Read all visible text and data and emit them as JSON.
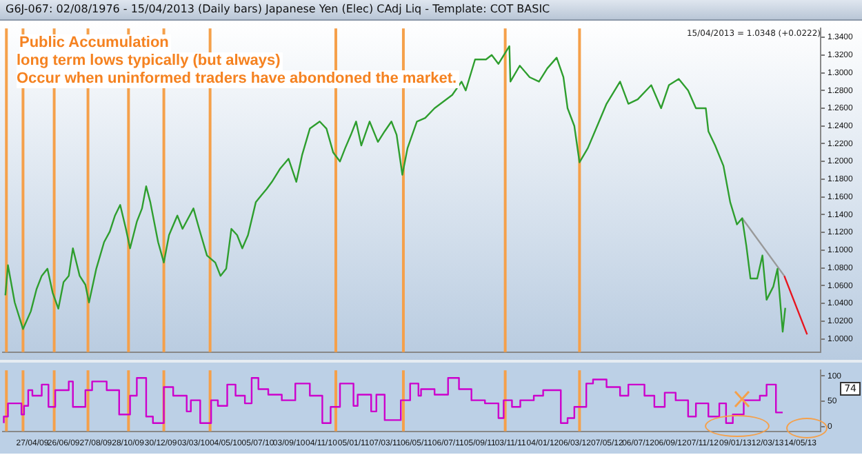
{
  "chart_data": [
    {
      "type": "line",
      "title": "G6J-067:  02/08/1976 - 15/04/2013  (Daily bars)  Japanese Yen (Elec) CAdj Liq  -  Template: COT BASIC",
      "annotations": [
        "Public Accumulation",
        "long term lows typically (but always)",
        "Occur when uninformed traders have abondoned the market.",
        "15/04/2013 = 1.0348 (+0.0222)"
      ],
      "xlim": [
        "2009-03-01",
        "2013-06-22"
      ],
      "ylim": [
        0.985,
        1.35
      ],
      "yticks": [
        {
          "value": 1.0,
          "label": "1.0000"
        },
        {
          "value": 1.02,
          "label": "1.0200"
        },
        {
          "value": 1.04,
          "label": "1.0400"
        },
        {
          "value": 1.06,
          "label": "1.0600"
        },
        {
          "value": 1.08,
          "label": "1.0800"
        },
        {
          "value": 1.1,
          "label": "1.1000"
        },
        {
          "value": 1.12,
          "label": "1.1200"
        },
        {
          "value": 1.14,
          "label": "1.1400"
        },
        {
          "value": 1.16,
          "label": "1.1600"
        },
        {
          "value": 1.18,
          "label": "1.1800"
        },
        {
          "value": 1.2,
          "label": "1.2000"
        },
        {
          "value": 1.22,
          "label": "1.2200"
        },
        {
          "value": 1.24,
          "label": "1.2400"
        },
        {
          "value": 1.26,
          "label": "1.2600"
        },
        {
          "value": 1.28,
          "label": "1.2800"
        },
        {
          "value": 1.3,
          "label": "1.3000"
        },
        {
          "value": 1.32,
          "label": "1.3200"
        },
        {
          "value": 1.34,
          "label": "1.3400"
        }
      ],
      "tick_labels": "y",
      "grid": false,
      "legend": false,
      "ref_lines": [
        {
          "axis": "x",
          "value": "2009-03-08",
          "color": "#f5a04a"
        },
        {
          "axis": "x",
          "value": "2009-04-09",
          "color": "#f5a04a"
        },
        {
          "axis": "x",
          "value": "2009-06-08",
          "color": "#f5a04a"
        },
        {
          "axis": "x",
          "value": "2009-08-12",
          "color": "#f5a04a"
        },
        {
          "axis": "x",
          "value": "2009-10-29",
          "color": "#f5a04a"
        },
        {
          "axis": "x",
          "value": "2010-01-05",
          "color": "#f5a04a"
        },
        {
          "axis": "x",
          "value": "2010-04-04",
          "color": "#f5a04a"
        },
        {
          "axis": "x",
          "value": "2010-12-02",
          "color": "#f5a04a"
        },
        {
          "axis": "x",
          "value": "2011-04-11",
          "color": "#f5a04a"
        },
        {
          "axis": "x",
          "value": "2011-10-24",
          "color": "#f5a04a"
        },
        {
          "axis": "x",
          "value": "2012-03-15",
          "color": "#f5a04a"
        }
      ],
      "series": [
        {
          "type": "line",
          "color": "#2e9e2e",
          "x": [
            "2009-03-06",
            "2009-03-11",
            "2009-03-24",
            "2009-04-09",
            "2009-04-24",
            "2009-05-05",
            "2009-05-15",
            "2009-05-26",
            "2009-06-05",
            "2009-06-16",
            "2009-06-26",
            "2009-07-06",
            "2009-07-14",
            "2009-07-27",
            "2009-08-07",
            "2009-08-14",
            "2009-08-28",
            "2009-09-12",
            "2009-09-23",
            "2009-10-03",
            "2009-10-13",
            "2009-10-24",
            "2009-11-01",
            "2009-11-14",
            "2009-11-24",
            "2009-12-02",
            "2009-12-10",
            "2009-12-25",
            "2010-01-05",
            "2010-01-15",
            "2010-01-31",
            "2010-02-10",
            "2010-03-03",
            "2010-03-14",
            "2010-03-29",
            "2010-04-14",
            "2010-04-24",
            "2010-05-05",
            "2010-05-15",
            "2010-05-26",
            "2010-06-05",
            "2010-06-16",
            "2010-07-01",
            "2010-07-12",
            "2010-07-22",
            "2010-08-01",
            "2010-08-17",
            "2010-09-02",
            "2010-09-17",
            "2010-09-28",
            "2010-10-13",
            "2010-11-01",
            "2010-11-14",
            "2010-11-27",
            "2010-12-10",
            "2010-12-20",
            "2010-12-31",
            "2011-01-10",
            "2011-01-20",
            "2011-02-05",
            "2011-02-21",
            "2011-03-06",
            "2011-03-19",
            "2011-03-29",
            "2011-04-09",
            "2011-04-19",
            "2011-05-07",
            "2011-05-23",
            "2011-06-10",
            "2011-07-14",
            "2011-08-01",
            "2011-08-09",
            "2011-08-27",
            "2011-09-17",
            "2011-09-28",
            "2011-10-11",
            "2011-11-01",
            "2011-11-03",
            "2011-11-21",
            "2011-12-10",
            "2011-12-28",
            "2012-01-13",
            "2012-01-31",
            "2012-02-13",
            "2012-02-21",
            "2012-03-05",
            "2012-03-15",
            "2012-03-31",
            "2012-04-18",
            "2012-05-06",
            "2012-06-01",
            "2012-06-17",
            "2012-07-05",
            "2012-07-31",
            "2012-08-19",
            "2012-09-03",
            "2012-09-22",
            "2012-10-10",
            "2012-10-25",
            "2012-11-13",
            "2012-11-18",
            "2012-12-01",
            "2012-12-17",
            "2012-12-30",
            "2013-01-12",
            "2013-01-22",
            "2013-01-30",
            "2013-02-07",
            "2013-02-20",
            "2013-03-02",
            "2013-03-10",
            "2013-03-23",
            "2013-03-31",
            "2013-04-10",
            "2013-04-15"
          ],
          "values": [
            1.049,
            1.083,
            1.041,
            1.011,
            1.031,
            1.056,
            1.071,
            1.079,
            1.052,
            1.034,
            1.064,
            1.071,
            1.102,
            1.071,
            1.061,
            1.041,
            1.079,
            1.109,
            1.121,
            1.139,
            1.151,
            1.124,
            1.102,
            1.132,
            1.147,
            1.172,
            1.154,
            1.109,
            1.086,
            1.117,
            1.139,
            1.124,
            1.147,
            1.124,
            1.094,
            1.086,
            1.071,
            1.079,
            1.124,
            1.117,
            1.102,
            1.117,
            1.154,
            1.162,
            1.169,
            1.177,
            1.192,
            1.203,
            1.177,
            1.207,
            1.237,
            1.245,
            1.237,
            1.21,
            1.2,
            1.215,
            1.23,
            1.245,
            1.218,
            1.245,
            1.222,
            1.234,
            1.245,
            1.23,
            1.185,
            1.215,
            1.245,
            1.249,
            1.26,
            1.275,
            1.29,
            1.28,
            1.315,
            1.315,
            1.32,
            1.31,
            1.33,
            1.29,
            1.308,
            1.295,
            1.29,
            1.305,
            1.317,
            1.295,
            1.26,
            1.24,
            1.199,
            1.215,
            1.24,
            1.265,
            1.29,
            1.265,
            1.27,
            1.286,
            1.26,
            1.286,
            1.293,
            1.28,
            1.26,
            1.26,
            1.234,
            1.218,
            1.195,
            1.154,
            1.129,
            1.136,
            1.105,
            1.068,
            1.068,
            1.094,
            1.044,
            1.059,
            1.079,
            1.008,
            1.0348
          ]
        },
        {
          "type": "line",
          "color": "#999999",
          "x": [
            "2013-01-22",
            "2013-04-13"
          ],
          "values": [
            1.136,
            1.071
          ]
        },
        {
          "type": "line",
          "color": "#e8141e",
          "x": [
            "2013-04-13",
            "2013-05-27"
          ],
          "values": [
            1.071,
            1.005
          ]
        }
      ]
    },
    {
      "type": "step",
      "annotations": [
        "74"
      ],
      "xlim": [
        "2009-03-01",
        "2013-06-22"
      ],
      "ylim": [
        -9,
        111
      ],
      "yticks": [
        0,
        50,
        100
      ],
      "xticks": [
        {
          "value": "2009-04-27",
          "label": "27/04/09"
        },
        {
          "value": "2009-06-26",
          "label": "26/06/09"
        },
        {
          "value": "2009-08-27",
          "label": "27/08/09"
        },
        {
          "value": "2009-10-28",
          "label": "28/10/09"
        },
        {
          "value": "2009-12-30",
          "label": "30/12/09"
        },
        {
          "value": "2010-03-03",
          "label": "03/03/10"
        },
        {
          "value": "2010-05-04",
          "label": "04/05/10"
        },
        {
          "value": "2010-07-05",
          "label": "05/07/10"
        },
        {
          "value": "2010-09-03",
          "label": "03/09/10"
        },
        {
          "value": "2010-11-04",
          "label": "04/11/10"
        },
        {
          "value": "2011-01-05",
          "label": "05/01/11"
        },
        {
          "value": "2011-03-07",
          "label": "07/03/11"
        },
        {
          "value": "2011-05-06",
          "label": "06/05/11"
        },
        {
          "value": "2011-07-06",
          "label": "06/07/11"
        },
        {
          "value": "2011-09-05",
          "label": "05/09/11"
        },
        {
          "value": "2011-11-03",
          "label": "03/11/11"
        },
        {
          "value": "2012-01-04",
          "label": "04/01/12"
        },
        {
          "value": "2012-03-06",
          "label": "06/03/12"
        },
        {
          "value": "2012-05-07",
          "label": "07/05/12"
        },
        {
          "value": "2012-07-06",
          "label": "06/07/12"
        },
        {
          "value": "2012-09-06",
          "label": "06/09/12"
        },
        {
          "value": "2012-11-07",
          "label": "07/11/12"
        },
        {
          "value": "2013-01-09",
          "label": "09/01/13"
        },
        {
          "value": "2013-03-12",
          "label": "12/03/13"
        },
        {
          "value": "2013-05-14",
          "label": "14/05/13"
        }
      ],
      "grid": false,
      "legend": false,
      "ref_lines": [
        {
          "axis": "x",
          "value": "2009-03-08",
          "color": "#f5a04a"
        },
        {
          "axis": "x",
          "value": "2009-04-09",
          "color": "#f5a04a"
        },
        {
          "axis": "x",
          "value": "2009-06-08",
          "color": "#f5a04a"
        },
        {
          "axis": "x",
          "value": "2009-08-12",
          "color": "#f5a04a"
        },
        {
          "axis": "x",
          "value": "2009-10-29",
          "color": "#f5a04a"
        },
        {
          "axis": "x",
          "value": "2010-01-05",
          "color": "#f5a04a"
        },
        {
          "axis": "x",
          "value": "2010-04-04",
          "color": "#f5a04a"
        },
        {
          "axis": "x",
          "value": "2010-12-02",
          "color": "#f5a04a"
        },
        {
          "axis": "x",
          "value": "2011-04-11",
          "color": "#f5a04a"
        },
        {
          "axis": "x",
          "value": "2011-10-24",
          "color": "#f5a04a"
        },
        {
          "axis": "x",
          "value": "2012-03-15",
          "color": "#f5a04a"
        }
      ],
      "series": [
        {
          "color": "#cc00cc",
          "x": [
            "2009-03-03",
            "2009-03-11",
            "2009-04-06",
            "2009-04-11",
            "2009-04-19",
            "2009-04-27",
            "2009-05-15",
            "2009-05-28",
            "2009-06-10",
            "2009-07-06",
            "2009-07-14",
            "2009-08-07",
            "2009-08-20",
            "2009-09-17",
            "2009-10-11",
            "2009-11-01",
            "2009-11-14",
            "2009-12-02",
            "2009-12-15",
            "2010-01-05",
            "2010-01-23",
            "2010-02-18",
            "2010-02-26",
            "2010-03-16",
            "2010-04-06",
            "2010-04-19",
            "2010-05-07",
            "2010-05-23",
            "2010-06-10",
            "2010-06-23",
            "2010-07-06",
            "2010-07-25",
            "2010-08-20",
            "2010-09-15",
            "2010-10-13",
            "2010-11-06",
            "2010-11-22",
            "2010-12-10",
            "2011-01-05",
            "2011-01-13",
            "2011-02-08",
            "2011-02-18",
            "2011-03-06",
            "2011-04-06",
            "2011-04-24",
            "2011-05-10",
            "2011-05-15",
            "2011-06-10",
            "2011-07-06",
            "2011-07-27",
            "2011-08-20",
            "2011-09-15",
            "2011-10-11",
            "2011-10-21",
            "2011-11-06",
            "2011-11-22",
            "2011-12-18",
            "2012-01-05",
            "2012-02-08",
            "2012-02-21",
            "2012-03-05",
            "2012-03-28",
            "2012-04-10",
            "2012-05-06",
            "2012-06-01",
            "2012-06-17",
            "2012-07-18",
            "2012-08-06",
            "2012-08-26",
            "2012-09-16",
            "2012-10-10",
            "2012-10-25",
            "2012-11-18",
            "2012-12-09",
            "2012-12-22",
            "2013-01-04",
            "2013-01-25",
            "2013-02-25",
            "2013-03-10",
            "2013-03-28",
            "2013-04-10"
          ],
          "values": [
            7,
            20,
            46,
            24,
            41,
            72,
            61,
            83,
            39,
            72,
            89,
            39,
            72,
            89,
            72,
            24,
            61,
            96,
            20,
            7,
            78,
            61,
            30,
            52,
            7,
            52,
            41,
            83,
            61,
            46,
            96,
            74,
            63,
            52,
            85,
            61,
            7,
            39,
            85,
            41,
            63,
            30,
            63,
            13,
            52,
            85,
            61,
            74,
            63,
            96,
            74,
            52,
            46,
            17,
            52,
            39,
            52,
            61,
            72,
            7,
            17,
            39,
            85,
            93,
            78,
            61,
            83,
            61,
            39,
            67,
            52,
            20,
            46,
            20,
            46,
            7,
            24,
            52,
            61,
            83,
            28
          ]
        }
      ]
    }
  ]
}
